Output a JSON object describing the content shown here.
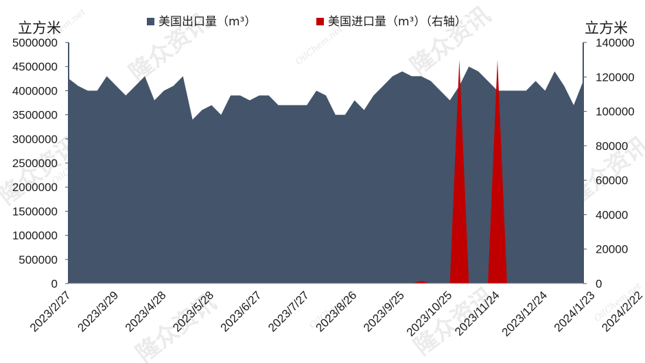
{
  "chart_data": {
    "type": "area",
    "left_unit": "立方米",
    "right_unit": "立方米",
    "legend": [
      {
        "label": "美国出口量（m³）",
        "color": "#44546a"
      },
      {
        "label": "美国进口量（m³）（右轴）",
        "color": "#c00000"
      }
    ],
    "y_left": {
      "min": 0,
      "max": 5000000,
      "ticks": [
        "0",
        "500000",
        "1000000",
        "1500000",
        "2000000",
        "2500000",
        "3000000",
        "3500000",
        "4000000",
        "4500000",
        "5000000"
      ]
    },
    "y_right": {
      "min": 0,
      "max": 140000,
      "ticks": [
        "0",
        "20000",
        "40000",
        "60000",
        "80000",
        "100000",
        "120000",
        "140000"
      ]
    },
    "x_labels": [
      "2023/2/27",
      "2023/3/29",
      "2023/4/28",
      "2023/5/28",
      "2023/6/27",
      "2023/7/27",
      "2023/8/26",
      "2023/9/25",
      "2023/10/25",
      "2023/11/24",
      "2023/12/24",
      "2024/1/23",
      "2024/2/22"
    ],
    "x_label_positions": [
      0,
      5,
      10,
      15,
      20,
      25,
      30,
      35,
      40,
      45,
      50,
      55,
      60
    ],
    "series": [
      {
        "name": "美国出口量（m³）",
        "axis": "left",
        "color": "#44546a",
        "values": [
          4250000,
          4100000,
          4000000,
          4000000,
          4300000,
          4100000,
          3900000,
          4100000,
          4300000,
          3800000,
          4000000,
          4100000,
          4300000,
          3400000,
          3600000,
          3700000,
          3500000,
          3900000,
          3900000,
          3800000,
          3900000,
          3900000,
          3700000,
          3700000,
          3700000,
          3700000,
          4000000,
          3900000,
          3500000,
          3500000,
          3800000,
          3600000,
          3900000,
          4100000,
          4300000,
          4400000,
          4300000,
          4300000,
          4200000,
          4000000,
          3800000,
          4100000,
          4500000,
          4400000,
          4200000,
          4000000,
          4000000,
          4000000,
          4000000,
          4200000,
          4000000,
          4400000,
          4100000,
          3700000,
          4200000
        ]
      },
      {
        "name": "美国进口量（m³）（右轴）",
        "axis": "right",
        "color": "#c00000",
        "values": [
          0,
          0,
          0,
          0,
          0,
          0,
          0,
          0,
          0,
          0,
          0,
          0,
          0,
          0,
          0,
          0,
          0,
          0,
          0,
          0,
          0,
          0,
          0,
          0,
          0,
          0,
          0,
          0,
          0,
          0,
          0,
          0,
          0,
          0,
          0,
          0,
          0,
          1500,
          0,
          0,
          0,
          130000,
          0,
          0,
          0,
          130000,
          0,
          0,
          0,
          0,
          0,
          0,
          0,
          0,
          0
        ]
      }
    ],
    "grid": false
  },
  "watermarks": [
    "隆众资讯",
    "OilChem.net"
  ]
}
